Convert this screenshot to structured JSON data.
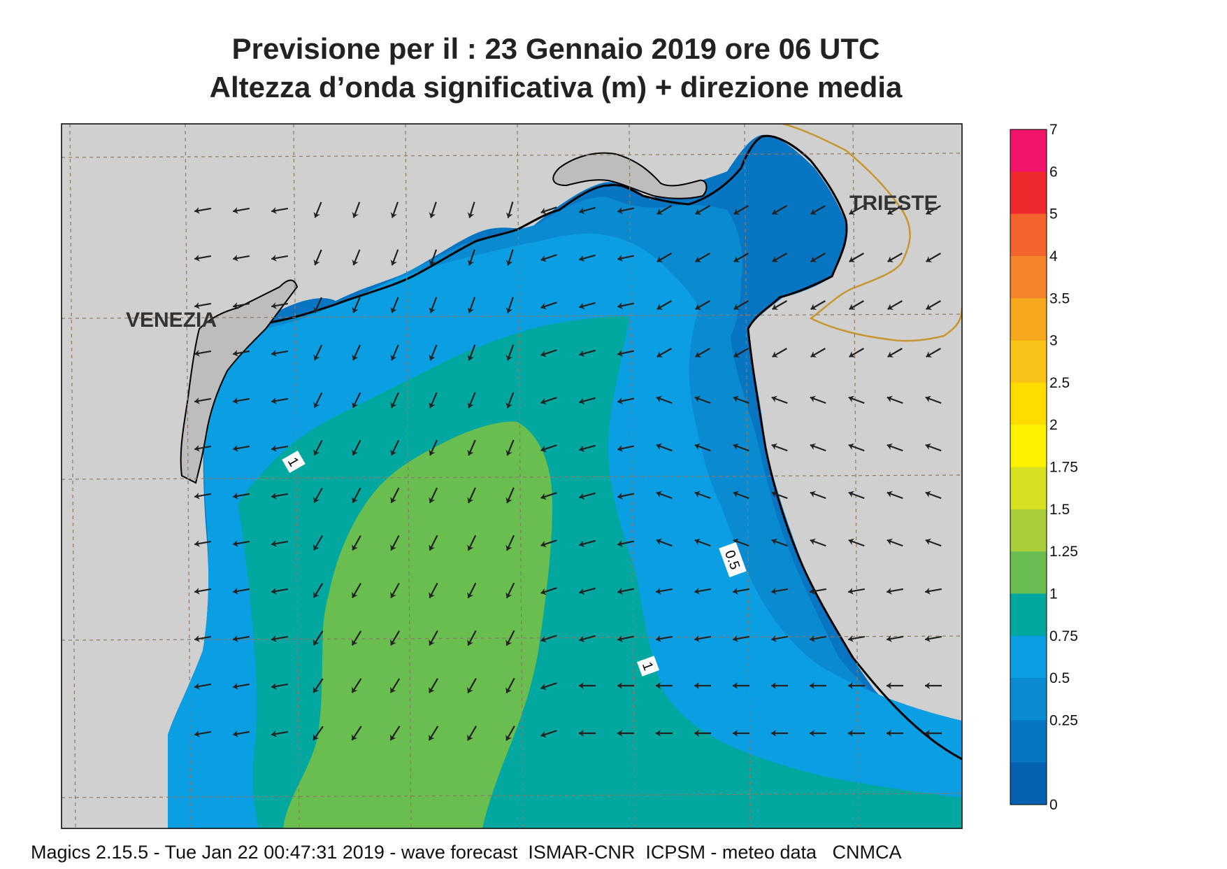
{
  "title_line1": "Previsione per il  :  23  Gennaio  2019   ore 06 UTC",
  "title_line2": "Altezza d’onda significativa (m) + direzione media",
  "cities": {
    "venezia": "VENEZIA",
    "trieste": "TRIESTE"
  },
  "contour_labels": {
    "c1_west": "1",
    "c05": "0.5",
    "c1_east": "1"
  },
  "colorbar": {
    "labels": [
      "7",
      "6",
      "5",
      "4",
      "3.5",
      "3",
      "2.5",
      "2",
      "1.75",
      "1.5",
      "1.25",
      "1",
      "0.75",
      "0.5",
      "0.25",
      "0"
    ],
    "colors": [
      "#f0156a",
      "#ee2a2f",
      "#f2642c",
      "#f4842a",
      "#f6a71c",
      "#fac318",
      "#ffdc00",
      "#fff200",
      "#d8e120",
      "#a9ce3a",
      "#6abd4f",
      "#02a79f",
      "#0c9ee2",
      "#0a8bd1",
      "#0775c2",
      "#0562b2"
    ]
  },
  "colors": {
    "land": "#d0d0d0",
    "sea_low": "#0775c2",
    "sea_mid": "#0a8bd1",
    "sea_blue": "#0c9ee2",
    "teal": "#02a79f",
    "green": "#6abd4f",
    "border": "#c8962e"
  },
  "footer": "Magics 2.15.5 - Tue Jan 22 00:47:31 2019 - wave forecast  ISMAR-CNR  ICPSM - meteo data   CNMCA"
}
